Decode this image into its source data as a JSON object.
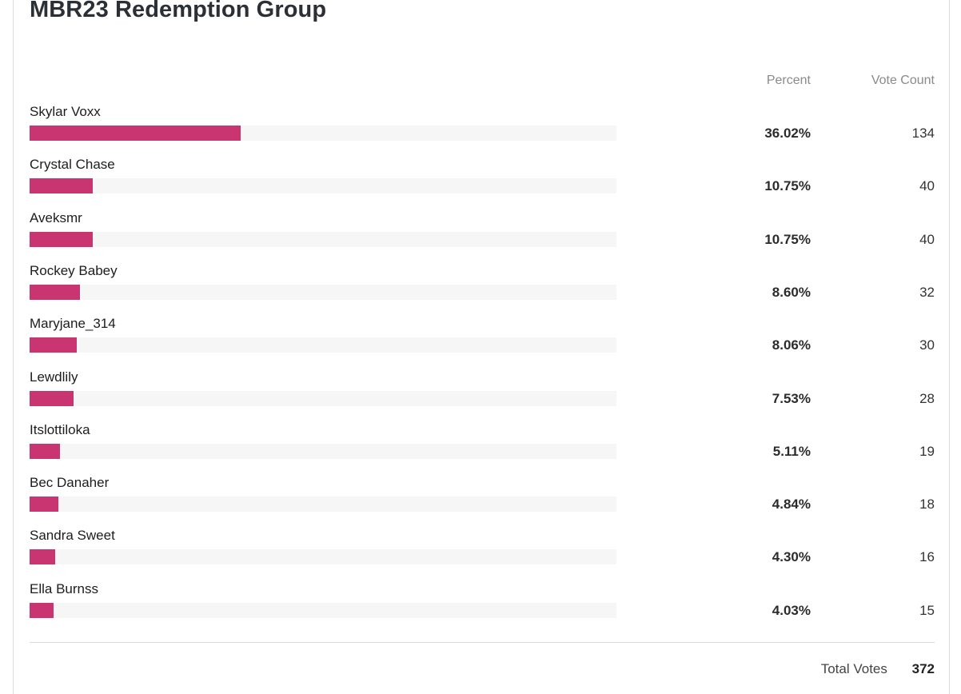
{
  "poll": {
    "title": "MBR23 Redemption Group",
    "percent_header": "Percent",
    "count_header": "Vote Count",
    "total_label": "Total Votes",
    "total_value": "372"
  },
  "colors": {
    "bar_fill": "#c93570",
    "bar_track": "#f6f6f6"
  },
  "chart_data": {
    "type": "bar",
    "orientation": "horizontal",
    "title": "MBR23 Redemption Group",
    "categories": [
      "Skylar Voxx",
      "Crystal Chase",
      "Aveksmr",
      "Rockey Babey",
      "Maryjane_314",
      "Lewdlily",
      "Itslottiloka",
      "Bec Danaher",
      "Sandra Sweet",
      "Ella Burnss"
    ],
    "percent_labels": [
      "36.02%",
      "10.75%",
      "10.75%",
      "8.60%",
      "8.06%",
      "7.53%",
      "5.11%",
      "4.84%",
      "4.30%",
      "4.03%"
    ],
    "percent_values": [
      36.02,
      10.75,
      10.75,
      8.6,
      8.06,
      7.53,
      5.11,
      4.84,
      4.3,
      4.03
    ],
    "vote_counts": [
      "134",
      "40",
      "40",
      "32",
      "30",
      "28",
      "19",
      "18",
      "16",
      "15"
    ],
    "xlim": [
      0,
      100
    ]
  }
}
